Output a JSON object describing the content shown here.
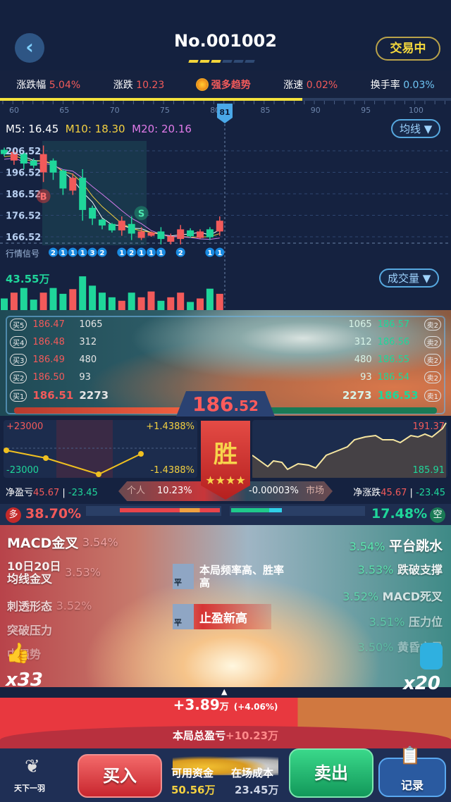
{
  "header": {
    "back_icon": "chevron-left-icon",
    "title": "No.001002",
    "progress_steps": 6,
    "progress_done": 3,
    "status": "交易中"
  },
  "stats": [
    {
      "label": "涨跌幅",
      "value": "5.04%",
      "color": "red"
    },
    {
      "label": "涨跌",
      "value": "10.23",
      "color": "red"
    },
    {
      "label": "",
      "value": "强多趋势",
      "color": "red",
      "icon": "sun-icon"
    },
    {
      "label": "涨速",
      "value": "0.02%",
      "color": "red"
    },
    {
      "label": "换手率",
      "value": "0.03%",
      "color": "blue"
    }
  ],
  "timeline": {
    "ticks": [
      "60",
      "65",
      "70",
      "75",
      "80",
      "85",
      "90",
      "95",
      "100"
    ],
    "current": "81",
    "progress_percent": 67
  },
  "ma": {
    "m5": "M5: 16.45",
    "m10": "M10: 18.30",
    "m20": "M20: 20.16",
    "selector": "均线 ▼"
  },
  "colors": {
    "up": "#f25a5a",
    "down": "#1fd69a",
    "accent": "#f3d040",
    "m5": "#ffffff",
    "m10": "#f3d040",
    "m20": "#d07ae8"
  },
  "chart_data": {
    "type": "candlestick",
    "y_ticks": [
      "206.52",
      "196.52",
      "186.52",
      "176.52",
      "166.52"
    ],
    "ylim": [
      164,
      209
    ],
    "candles": [
      {
        "o": 207,
        "c": 205,
        "h": 208,
        "l": 204
      },
      {
        "o": 202,
        "c": 206,
        "h": 208,
        "l": 200
      },
      {
        "o": 205.5,
        "c": 200.6,
        "h": 206,
        "l": 198
      },
      {
        "o": 202,
        "c": 199.6,
        "h": 203,
        "l": 198.5
      },
      {
        "o": 196.5,
        "c": 205,
        "h": 209,
        "l": 192
      },
      {
        "o": 202,
        "c": 196.4,
        "h": 203,
        "l": 193
      },
      {
        "o": 197.3,
        "c": 189,
        "h": 198,
        "l": 186
      },
      {
        "o": 188,
        "c": 194,
        "h": 196,
        "l": 186
      },
      {
        "o": 194,
        "c": 179,
        "h": 198,
        "l": 174
      },
      {
        "o": 180,
        "c": 175,
        "h": 181,
        "l": 172
      },
      {
        "o": 174.5,
        "c": 171.8,
        "h": 175,
        "l": 170
      },
      {
        "o": 172.5,
        "c": 169.5,
        "h": 173,
        "l": 168.5
      },
      {
        "o": 169.5,
        "c": 174,
        "h": 176,
        "l": 167
      },
      {
        "o": 172.5,
        "c": 168,
        "h": 176,
        "l": 165
      },
      {
        "o": 166,
        "c": 169,
        "h": 171,
        "l": 165
      },
      {
        "o": 167,
        "c": 168.5,
        "h": 169,
        "l": 166.5
      },
      {
        "o": 169,
        "c": 165.5,
        "h": 171,
        "l": 163
      },
      {
        "o": 164.2,
        "c": 166.8,
        "h": 168,
        "l": 163
      },
      {
        "o": 165.5,
        "c": 170,
        "h": 172,
        "l": 163
      },
      {
        "o": 169.5,
        "c": 166.8,
        "h": 170.5,
        "l": 166
      },
      {
        "o": 166,
        "c": 169,
        "h": 170,
        "l": 165.5
      },
      {
        "o": 170,
        "c": 166.3,
        "h": 171,
        "l": 165
      },
      {
        "o": 169,
        "c": 174,
        "h": 176,
        "l": 167
      }
    ],
    "markers": [
      {
        "label": "B",
        "index": 4
      },
      {
        "label": "S",
        "index": 14
      }
    ],
    "signal_label": "行情信号",
    "signals": [
      null,
      null,
      null,
      null,
      null,
      "2",
      "1",
      "1",
      "1",
      "3",
      "2",
      null,
      "1",
      "2",
      "1",
      "1",
      "1",
      null,
      "2",
      null,
      null,
      "1",
      "1"
    ],
    "volume_label": "43.55万",
    "volume_selector": "成交量 ▼",
    "volumes": [
      15,
      22.5,
      28.5,
      13.5,
      22.5,
      28.5,
      21,
      27,
      43.55,
      31.5,
      22.5,
      16.5,
      12,
      22.5,
      16.5,
      24,
      12,
      16.5,
      22.5,
      10.5,
      15,
      27.6,
      21
    ]
  },
  "orderbook": {
    "bids": [
      {
        "tag": "买5",
        "price": "186.47",
        "qty": "1065"
      },
      {
        "tag": "买4",
        "price": "186.48",
        "qty": "312"
      },
      {
        "tag": "买3",
        "price": "186.49",
        "qty": "480"
      },
      {
        "tag": "买2",
        "price": "186.50",
        "qty": "93"
      },
      {
        "tag": "买1",
        "price": "186.51",
        "qty": "2273"
      }
    ],
    "asks": [
      {
        "tag": "卖2",
        "price": "186.57",
        "qty": "1065"
      },
      {
        "tag": "卖2",
        "price": "186.56",
        "qty": "312"
      },
      {
        "tag": "卖2",
        "price": "186.55",
        "qty": "480"
      },
      {
        "tag": "卖2",
        "price": "186.54",
        "qty": "93"
      },
      {
        "tag": "卖1",
        "price": "186.53",
        "qty": "2273"
      }
    ],
    "price_int": "186",
    "price_dec": ".52",
    "bid_ratio": 0.4
  },
  "mini_left": {
    "top": "+23000",
    "bottom": "-23000",
    "right_top": "+1.4388%",
    "right_bottom": "-1.4388%"
  },
  "mini_right": {
    "top": "191.37",
    "bottom": "185.91"
  },
  "banner": {
    "text": "胜",
    "stars": 4
  },
  "net": {
    "pnl_label": "净盈亏",
    "pnl_pos": "45.67",
    "pnl_neg": "-23.45",
    "personal_label": "个人",
    "personal_value": "10.23%",
    "market_value": "-0.00003%",
    "market_label": "市场",
    "chg_label": "净涨跌",
    "chg_pos": "45.67",
    "chg_neg": "-23.45"
  },
  "sides": {
    "long_badge": "多",
    "long_pct": "38.70%",
    "short_pct": "17.48%",
    "short_badge": "空"
  },
  "signals_left": [
    {
      "name": "MACD金叉",
      "value": "3.54%"
    },
    {
      "name": "10日20日\n均线金叉",
      "value": "3.53%"
    },
    {
      "name": "刺透形态",
      "value": "3.52%"
    },
    {
      "name": "突破压力",
      "value": ""
    },
    {
      "name": "中强势",
      "value": ""
    }
  ],
  "signals_right": [
    {
      "name": "平台跳水",
      "value": "3.54%"
    },
    {
      "name": "跌破支撑",
      "value": "3.53%"
    },
    {
      "name": "MACD死叉",
      "value": "3.52%"
    },
    {
      "name": "压力位",
      "value": "3.51%"
    },
    {
      "name": "黄昏之星",
      "value": "3.50%"
    }
  ],
  "center_cards": [
    {
      "badge": "平",
      "text": "本局频率高、胜率高"
    },
    {
      "badge": "平",
      "text": "止盈新高"
    }
  ],
  "combo": {
    "left": "x33",
    "right": "x20"
  },
  "profit": {
    "value": "+3.89",
    "unit": "万",
    "pct": "(+4.06%)",
    "total_label": "本局总盈亏",
    "total_value": "+10.23万"
  },
  "bottom": {
    "logo": "天下一羽",
    "buy": "买入",
    "funds_label": "可用资金",
    "funds_value": "50.56万",
    "cost_label": "在场成本",
    "cost_value": "23.45万",
    "sell": "卖出",
    "record": "记录"
  }
}
